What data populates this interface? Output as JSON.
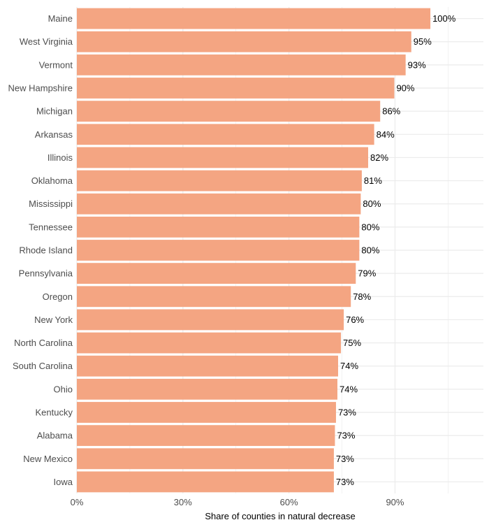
{
  "chart_data": {
    "type": "bar",
    "orientation": "horizontal",
    "categories": [
      "Maine",
      "West Virginia",
      "Vermont",
      "New Hampshire",
      "Michigan",
      "Arkansas",
      "Illinois",
      "Oklahoma",
      "Mississippi",
      "Tennessee",
      "Rhode Island",
      "Pennsylvania",
      "Oregon",
      "New York",
      "North Carolina",
      "South Carolina",
      "Ohio",
      "Kentucky",
      "Alabama",
      "New Mexico",
      "Iowa"
    ],
    "values": [
      100,
      94.6,
      93,
      89.8,
      85.8,
      84.1,
      82.4,
      80.6,
      80.3,
      79.9,
      79.9,
      78.9,
      77.5,
      75.5,
      74.7,
      73.9,
      73.7,
      73.3,
      73.0,
      72.7,
      72.7
    ],
    "value_labels": [
      "100%",
      "95%",
      "93%",
      "90%",
      "86%",
      "84%",
      "82%",
      "81%",
      "80%",
      "80%",
      "80%",
      "79%",
      "78%",
      "76%",
      "75%",
      "74%",
      "74%",
      "73%",
      "73%",
      "73%",
      "73%"
    ],
    "xlabel": "Share of counties in natural decrease",
    "ylabel": "",
    "xlim": [
      0,
      115
    ],
    "x_ticks": [
      0,
      30,
      60,
      90
    ],
    "x_tick_labels": [
      "0%",
      "30%",
      "60%",
      "90%"
    ],
    "bar_color": "#f4a582",
    "grid_color": "#ebebeb",
    "grid": true
  }
}
